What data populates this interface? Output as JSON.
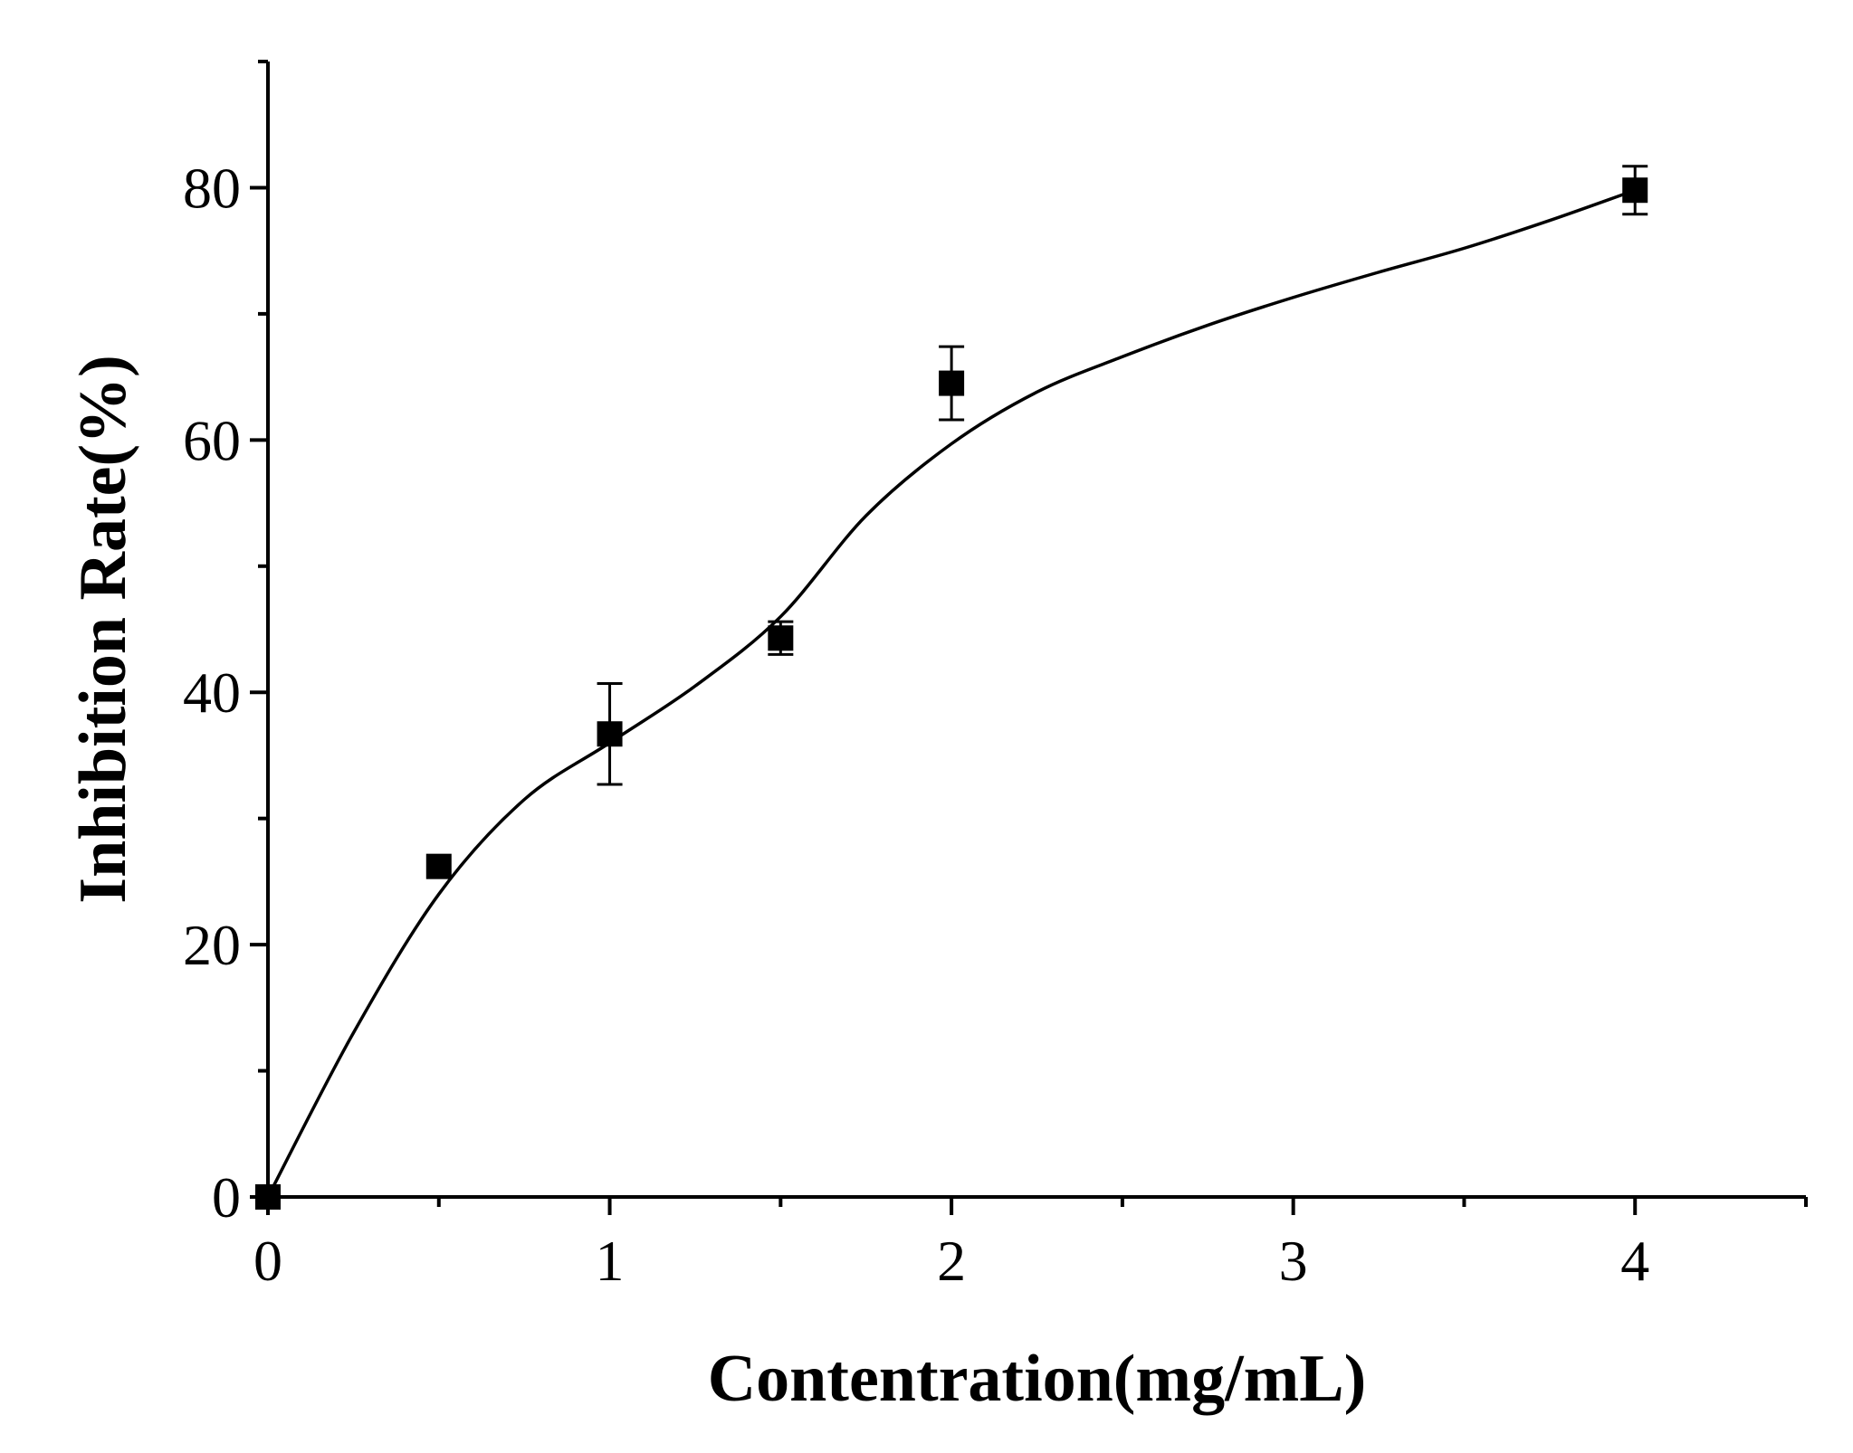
{
  "chart_data": {
    "type": "scatter",
    "title": "",
    "xlabel": "Contentration(mg/mL)",
    "ylabel": "Inhibition Rate(%)",
    "xlim": [
      0,
      4.5
    ],
    "ylim": [
      0,
      90
    ],
    "x_major_ticks": [
      0,
      1,
      2,
      3,
      4
    ],
    "x_minor_ticks": [
      0.5,
      1.5,
      2.5,
      3.5,
      4.5
    ],
    "x_tick_labels": [
      "0",
      "1",
      "2",
      "3",
      "4"
    ],
    "y_major_ticks": [
      0,
      20,
      40,
      60,
      80
    ],
    "y_minor_ticks": [
      10,
      30,
      50,
      70,
      90
    ],
    "y_tick_labels": [
      "0",
      "20",
      "40",
      "60",
      "80"
    ],
    "grid": false,
    "legend": "none",
    "series": [
      {
        "marker": "filled-square",
        "color": "#000000",
        "points": [
          {
            "x": 0,
            "y": 0,
            "err": 0
          },
          {
            "x": 0.5,
            "y": 26.2,
            "err": 0
          },
          {
            "x": 1,
            "y": 36.7,
            "err": 4.0
          },
          {
            "x": 1.5,
            "y": 44.3,
            "err": 1.3
          },
          {
            "x": 2,
            "y": 64.5,
            "err": 2.9
          },
          {
            "x": 4,
            "y": 79.8,
            "err": 1.9
          }
        ]
      }
    ],
    "fit_curve": {
      "style": "solid-line",
      "color": "#000000",
      "points": [
        [
          0,
          0
        ],
        [
          0.25,
          13
        ],
        [
          0.5,
          24
        ],
        [
          0.75,
          31.5
        ],
        [
          1,
          36
        ],
        [
          1.25,
          40.5
        ],
        [
          1.5,
          46
        ],
        [
          1.75,
          54
        ],
        [
          2,
          59.7
        ],
        [
          2.25,
          63.8
        ],
        [
          2.5,
          66.6
        ],
        [
          2.75,
          69.1
        ],
        [
          3,
          71.3
        ],
        [
          3.25,
          73.3
        ],
        [
          3.5,
          75.2
        ],
        [
          3.75,
          77.4
        ],
        [
          4,
          79.8
        ]
      ]
    }
  }
}
